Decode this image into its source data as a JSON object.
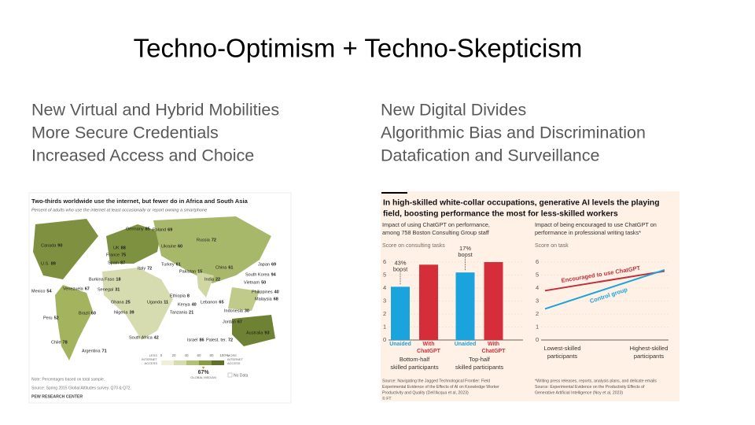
{
  "title": "Techno-Optimism + Techno-Skepticism",
  "left_points": [
    "New Virtual and Hybrid Mobilities",
    "More Secure Credentials",
    "Increased Access and Choice"
  ],
  "right_points": [
    "New Digital Divides",
    "Algorithmic Bias and Discrimination",
    "Datafication and Surveillance"
  ],
  "map": {
    "title": "Two-thirds worldwide use the internet, but fewer do in Africa and South Asia",
    "subtitle": "Percent of adults who use the internet at least occasionally or report owning a smartphone",
    "countries": [
      {
        "name": "Canada",
        "value": 90
      },
      {
        "name": "U.S.",
        "value": 89
      },
      {
        "name": "Mexico",
        "value": 54
      },
      {
        "name": "Venezuela",
        "value": 67
      },
      {
        "name": "Brazil",
        "value": 60
      },
      {
        "name": "Peru",
        "value": 52
      },
      {
        "name": "Chile",
        "value": 78
      },
      {
        "name": "Argentina",
        "value": 71
      },
      {
        "name": "Germany",
        "value": 85
      },
      {
        "name": "Poland",
        "value": 69
      },
      {
        "name": "UK",
        "value": 88
      },
      {
        "name": "France",
        "value": 75
      },
      {
        "name": "Spain",
        "value": 87
      },
      {
        "name": "Italy",
        "value": 72
      },
      {
        "name": "Ukraine",
        "value": 60
      },
      {
        "name": "Russia",
        "value": 72
      },
      {
        "name": "Burkina Faso",
        "value": 18
      },
      {
        "name": "Senegal",
        "value": 31
      },
      {
        "name": "Ghana",
        "value": 25
      },
      {
        "name": "Nigeria",
        "value": 39
      },
      {
        "name": "Uganda",
        "value": 11
      },
      {
        "name": "Ethiopia",
        "value": 8
      },
      {
        "name": "Kenya",
        "value": 40
      },
      {
        "name": "Tanzania",
        "value": 21
      },
      {
        "name": "South Africa",
        "value": 42
      },
      {
        "name": "Israel",
        "value": 86
      },
      {
        "name": "Palest. ter.",
        "value": 72
      },
      {
        "name": "Lebanon",
        "value": 65
      },
      {
        "name": "Jordan",
        "value": 67
      },
      {
        "name": "Turkey",
        "value": 61
      },
      {
        "name": "Pakistan",
        "value": 15
      },
      {
        "name": "India",
        "value": 22
      },
      {
        "name": "China",
        "value": 61
      },
      {
        "name": "Japan",
        "value": 69
      },
      {
        "name": "South Korea",
        "value": 94
      },
      {
        "name": "Vietnam",
        "value": 50
      },
      {
        "name": "Philippines",
        "value": 40
      },
      {
        "name": "Malaysia",
        "value": 68
      },
      {
        "name": "Indonesia",
        "value": 30
      },
      {
        "name": "Australia",
        "value": 93
      }
    ],
    "legend": {
      "ticks": [
        0,
        20,
        40,
        60,
        80,
        {
          "value": 100,
          "label": "100%"
        }
      ],
      "colors": [
        "#eef0d8",
        "#d6dcaf",
        "#b3c077",
        "#8a9b45",
        "#5f7228"
      ],
      "less": [
        "LESS",
        "INTERNET",
        "ACCESS"
      ],
      "more": [
        "MORE",
        "INTERNET",
        "ACCESS"
      ],
      "median": {
        "value": 67,
        "label": "67%"
      },
      "median_label": "GLOBAL MEDIAN",
      "no_data": "No Data"
    },
    "note": "Note: Percentages based on total sample.",
    "source": "Source: Spring 2015 Global Attitudes survey. Q70 & Q72.",
    "credit": "PEW RESEARCH CENTER"
  },
  "ft": {
    "title": [
      "In high-skilled white-collar occupations, generative AI levels the playing",
      "field, boosting performance the most for less-skilled workers"
    ],
    "charts": [
      {
        "type": "bar",
        "subtitle": [
          "Impact of using ChatGPT on performance,",
          "among 758 Boston Consulting Group staff"
        ],
        "axis_label": "Score on consulting tasks",
        "categories": [
          [
            "Bottom-half",
            "skilled participants"
          ],
          [
            "Top-half",
            "skilled participants"
          ]
        ],
        "series": [
          {
            "name": "Unaided",
            "color": "#1ba3dd",
            "values": [
              4.1,
              5.2
            ]
          },
          {
            "name": "With ChatGPT",
            "color": "#d62d3a",
            "values": [
              5.8,
              6.0
            ]
          }
        ],
        "annotations": [
          [
            "43%",
            "boost"
          ],
          [
            "17%",
            "boost"
          ]
        ],
        "ylim": [
          0,
          6
        ],
        "yticks": [
          0,
          1,
          2,
          3,
          4,
          5,
          6
        ]
      },
      {
        "type": "line",
        "subtitle": [
          "Impact of being encouraged to use ChatGPT on",
          "performance in professional writing tasks*"
        ],
        "axis_label": "Score on task",
        "categories": [
          [
            "Lowest-skilled",
            "participants"
          ],
          [
            "Highest-skilled",
            "participants"
          ]
        ],
        "series": [
          {
            "name": "Encouraged to use ChatGPT",
            "color": "#c0303c",
            "values": [
              3.8,
              5.3
            ]
          },
          {
            "name": "Control group",
            "color": "#1ba3dd",
            "values": [
              2.4,
              5.4
            ]
          }
        ],
        "ylim": [
          0,
          6
        ],
        "yticks": [
          0,
          1,
          2,
          3,
          4,
          5,
          6
        ]
      }
    ],
    "source_left": [
      "Source: Navigating the Jagged Technological Frontier: Field",
      "Experimental Evidence of the Effects of AI on Knowledge Worker",
      "Productivity and Quality (Dell'Acqua et al, 2023)",
      "© FT"
    ],
    "source_right": [
      "*Writing press releases, reports, analysis plans, and delicate emails",
      "Source: Experimental Evidence on the Productivity Effects of",
      "Generative Artificial Intelligence (Noy et al, 2023)"
    ]
  }
}
